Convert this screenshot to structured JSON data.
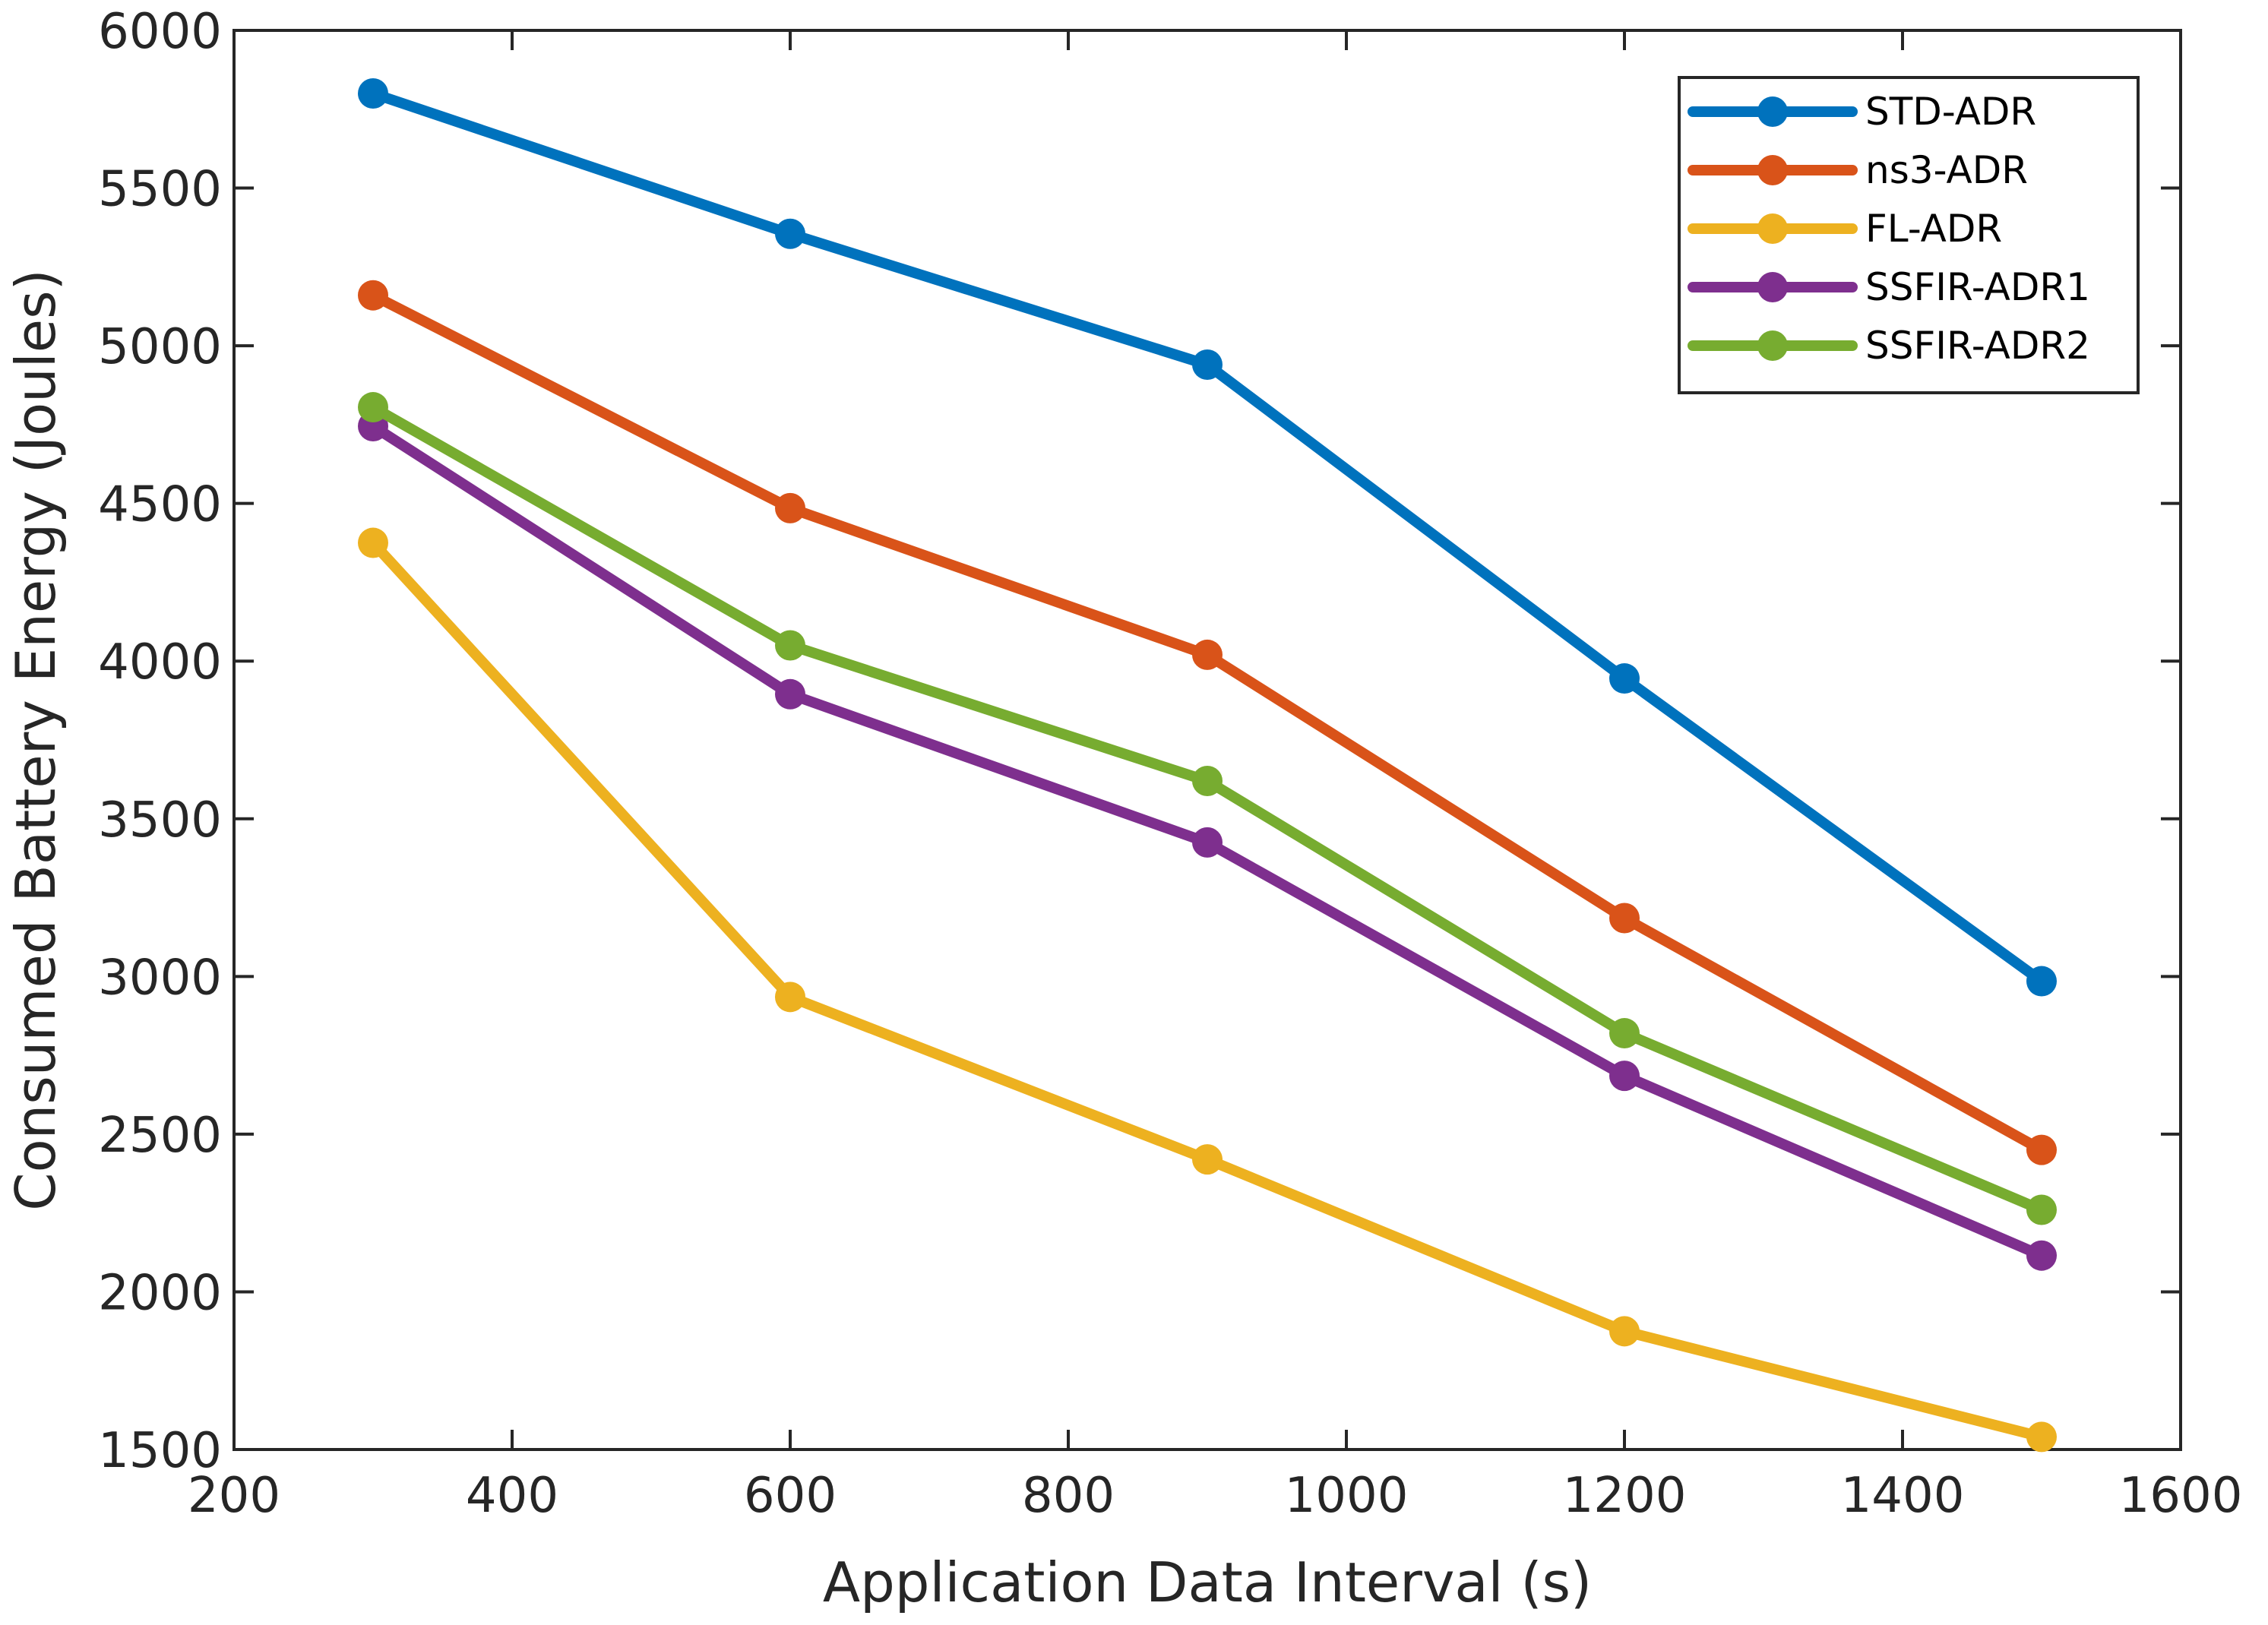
{
  "chart_data": {
    "type": "line",
    "title": "",
    "xlabel": "Application Data Interval (s)",
    "ylabel": "Consumed Battery Energy (Joules)",
    "xlim": [
      200,
      1600
    ],
    "ylim": [
      1500,
      6000
    ],
    "xticks": [
      200,
      400,
      600,
      800,
      1000,
      1200,
      1400,
      1600
    ],
    "yticks": [
      1500,
      2000,
      2500,
      3000,
      3500,
      4000,
      4500,
      5000,
      5500,
      6000
    ],
    "x": [
      300,
      600,
      900,
      1200,
      1500
    ],
    "grid": false,
    "legend_position": "top-right",
    "series": [
      {
        "name": "STD-ADR",
        "color": "#0072BD",
        "values": [
          5800,
          5355,
          4940,
          3945,
          2985
        ]
      },
      {
        "name": "ns3-ADR",
        "color": "#D95319",
        "values": [
          5160,
          4485,
          4020,
          3185,
          2450
        ]
      },
      {
        "name": "FL-ADR",
        "color": "#EDB120",
        "values": [
          4375,
          2935,
          2420,
          1875,
          1540
        ]
      },
      {
        "name": "SSFIR-ADR1",
        "color": "#7E2F8E",
        "values": [
          4745,
          3895,
          3425,
          2685,
          2115
        ]
      },
      {
        "name": "SSFIR-ADR2",
        "color": "#77AC30",
        "values": [
          4805,
          4050,
          3620,
          2820,
          2260
        ]
      }
    ]
  }
}
